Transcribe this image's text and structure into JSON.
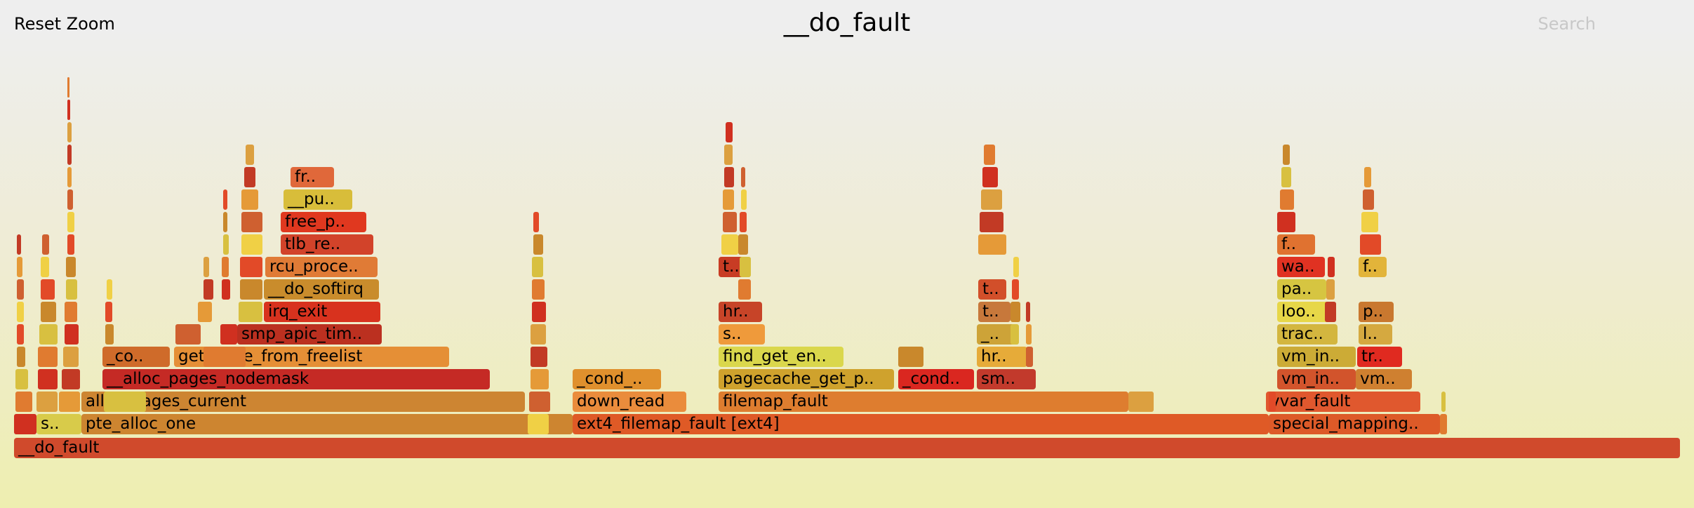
{
  "toolbar": {
    "reset_zoom": "Reset Zoom",
    "title": "__do_fault",
    "search": "Search"
  },
  "frames": [
    {
      "name": "__do_fault",
      "text": "__do_fault",
      "c": "#d04a2c"
    },
    {
      "name": "frame-s-alloc",
      "text": "s..",
      "c": "#d8cb4a"
    },
    {
      "name": "frame-pte-alloc-one",
      "text": "pte_alloc_one",
      "c": "#cd8530"
    },
    {
      "name": "frame-alloc-pages-current",
      "text": "alloc_pages_current",
      "c": "#cd8532"
    },
    {
      "name": "frame-alloc-pages-nodemask",
      "text": "__alloc_pages_nodemask",
      "c": "#c52a25"
    },
    {
      "name": "frame-co",
      "text": "_co..",
      "c": "#cf6b2a"
    },
    {
      "name": "frame-get-page-from-freelist",
      "text": "get_page_from_freelist",
      "c": "#e58f36"
    },
    {
      "name": "frame-smp-apic-tim",
      "text": "smp_apic_tim..",
      "c": "#bb3020"
    },
    {
      "name": "frame-irq-exit",
      "text": "irq_exit",
      "c": "#d8321e"
    },
    {
      "name": "frame-do-softirq",
      "text": "__do_softirq",
      "c": "#c98c2c"
    },
    {
      "name": "frame-rcu-proce",
      "text": "rcu_proce..",
      "c": "#e07b36"
    },
    {
      "name": "frame-tlb-re",
      "text": "tlb_re..",
      "c": "#d2432a"
    },
    {
      "name": "frame-free-p",
      "text": "free_p..",
      "c": "#e0381f"
    },
    {
      "name": "frame-pu",
      "text": "__pu..",
      "c": "#d8bd3a"
    },
    {
      "name": "frame-fr",
      "text": "fr..",
      "c": "#e0683a"
    },
    {
      "name": "frame-ext4-filemap-fault",
      "text": "ext4_filemap_fault [ext4]",
      "c": "#df5a26"
    },
    {
      "name": "frame-down-read",
      "text": "down_read",
      "c": "#ea8c3c"
    },
    {
      "name": "frame-cond-1",
      "text": "_cond_..",
      "c": "#e0902d"
    },
    {
      "name": "frame-filemap-fault",
      "text": "filemap_fault",
      "c": "#de7d2f"
    },
    {
      "name": "frame-pagecache-get-p",
      "text": "pagecache_get_p..",
      "c": "#cfa22d"
    },
    {
      "name": "frame-find-get-en",
      "text": "find_get_en..",
      "c": "#dad74c"
    },
    {
      "name": "frame-s-find",
      "text": "s..",
      "c": "#ef9a3b"
    },
    {
      "name": "frame-hr-find",
      "text": "hr..",
      "c": "#c74428"
    },
    {
      "name": "frame-t-find",
      "text": "t..",
      "c": "#c83c24"
    },
    {
      "name": "frame-cond-2",
      "text": "_cond..",
      "c": "#da2720"
    },
    {
      "name": "frame-sm",
      "text": "sm..",
      "c": "#c23a2c"
    },
    {
      "name": "frame-hr-2",
      "text": "hr..",
      "c": "#e6ab39"
    },
    {
      "name": "frame-underscore",
      "text": "_..",
      "c": "#cda338"
    },
    {
      "name": "frame-t-2",
      "text": "t..",
      "c": "#c7783b"
    },
    {
      "name": "frame-t-3",
      "text": "t..",
      "c": "#d24f2a"
    },
    {
      "name": "frame-special-mapping",
      "text": "special_mapping..",
      "c": "#dd5a28"
    },
    {
      "name": "frame-vvar-fault",
      "text": "vvar_fault",
      "c": "#e0582e"
    },
    {
      "name": "frame-vm-in-1",
      "text": "vm_in..",
      "c": "#d2542c"
    },
    {
      "name": "frame-vm-in-2",
      "text": "vm_in..",
      "c": "#ccab36"
    },
    {
      "name": "frame-trac",
      "text": "trac..",
      "c": "#d3b63f"
    },
    {
      "name": "frame-loo",
      "text": "loo..",
      "c": "#e7d748"
    },
    {
      "name": "frame-pa",
      "text": "pa..",
      "c": "#d6c541"
    },
    {
      "name": "frame-wa",
      "text": "wa..",
      "c": "#e03222"
    },
    {
      "name": "frame-f-1",
      "text": "f..",
      "c": "#e07230"
    },
    {
      "name": "frame-vm-3",
      "text": "vm..",
      "c": "#cf8030"
    },
    {
      "name": "frame-tr",
      "text": "tr..",
      "c": "#e02a20"
    },
    {
      "name": "frame-l",
      "text": "l..",
      "c": "#d5a940"
    },
    {
      "name": "frame-p",
      "text": "p..",
      "c": "#c9782f"
    },
    {
      "name": "frame-f-2",
      "text": "f..",
      "c": "#e2b43a"
    }
  ]
}
